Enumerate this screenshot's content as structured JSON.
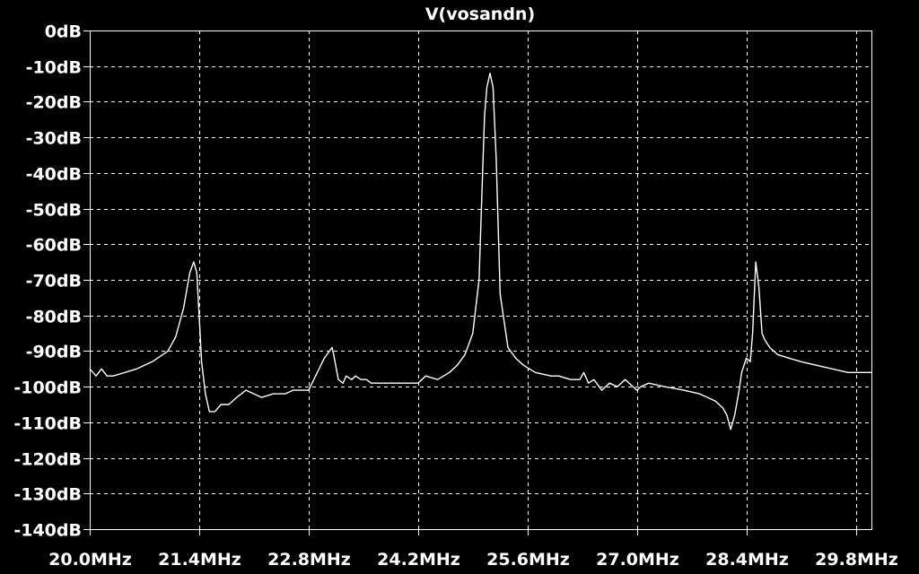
{
  "chart_data": {
    "type": "line",
    "title": "V(vosandn)",
    "xlabel": "",
    "ylabel": "",
    "x_unit": "MHz",
    "y_unit": "dB",
    "xlim": [
      20.0,
      30.0
    ],
    "ylim": [
      -140,
      0
    ],
    "x_ticks": [
      20.0,
      21.4,
      22.8,
      24.2,
      25.6,
      27.0,
      28.4,
      29.8
    ],
    "x_tick_labels": [
      "20.0MHz",
      "21.4MHz",
      "22.8MHz",
      "24.2MHz",
      "25.6MHz",
      "27.0MHz",
      "28.4MHz",
      "29.8MHz"
    ],
    "y_ticks": [
      0,
      -10,
      -20,
      -30,
      -40,
      -50,
      -60,
      -70,
      -80,
      -90,
      -100,
      -110,
      -120,
      -130,
      -140
    ],
    "y_tick_labels": [
      "0dB",
      "-10dB",
      "-20dB",
      "-30dB",
      "-40dB",
      "-50dB",
      "-60dB",
      "-70dB",
      "-80dB",
      "-90dB",
      "-100dB",
      "-110dB",
      "-120dB",
      "-130dB",
      "-140dB"
    ],
    "grid": true,
    "legend": "none",
    "colors": {
      "background": "#000000",
      "trace": "#ffffff",
      "grid": "#ffffff",
      "axis": "#ffffff",
      "text": "#ffffff"
    },
    "series": [
      {
        "x": [
          20.0,
          20.08,
          20.15,
          20.22,
          20.3,
          20.45,
          20.6,
          20.8,
          21.0,
          21.1,
          21.2,
          21.28,
          21.33,
          21.37,
          21.4,
          21.43,
          21.48,
          21.53,
          21.6,
          21.68,
          21.78,
          21.88,
          22.0,
          22.2,
          22.35,
          22.5,
          22.6,
          22.8,
          23.0,
          23.1,
          23.12,
          23.18,
          23.24,
          23.28,
          23.35,
          23.4,
          23.47,
          23.54,
          23.6,
          23.7,
          23.85,
          24.0,
          24.2,
          24.3,
          24.45,
          24.6,
          24.7,
          24.8,
          24.9,
          24.98,
          25.02,
          25.05,
          25.08,
          25.12,
          25.16,
          25.2,
          25.25,
          25.35,
          25.45,
          25.55,
          25.7,
          25.9,
          26.0,
          26.15,
          26.27,
          26.32,
          26.38,
          26.45,
          26.55,
          26.65,
          26.75,
          26.85,
          26.95,
          27.0,
          27.05,
          27.15,
          27.35,
          27.6,
          27.8,
          28.0,
          28.05,
          28.1,
          28.15,
          28.2,
          28.25,
          28.3,
          28.34,
          28.4,
          28.45,
          28.48,
          28.52,
          28.56,
          28.6,
          28.64,
          28.7,
          28.8,
          28.95,
          29.1,
          29.3,
          29.5,
          29.7,
          29.8,
          29.9,
          30.0
        ],
        "y": [
          -95,
          -97,
          -95,
          -97,
          -97,
          -96,
          -95,
          -93,
          -90,
          -86,
          -78,
          -68,
          -65,
          -68,
          -80,
          -93,
          -102,
          -107,
          -107,
          -105,
          -105,
          -103,
          -101,
          -103,
          -102,
          -102,
          -101,
          -101,
          -92,
          -89,
          -91,
          -98,
          -99,
          -97,
          -98,
          -97,
          -98,
          -98,
          -99,
          -99,
          -99,
          -99,
          -99,
          -97,
          -98,
          -96,
          -94,
          -91,
          -85,
          -70,
          -44,
          -24,
          -16,
          -12,
          -16,
          -36,
          -74,
          -89,
          -92,
          -94,
          -96,
          -97,
          -97,
          -98,
          -98,
          -96,
          -99,
          -98,
          -101,
          -99,
          -100,
          -98,
          -100,
          -101,
          -100,
          -99,
          -100,
          -101,
          -102,
          -104,
          -105,
          -106,
          -108,
          -112,
          -108,
          -102,
          -96,
          -92,
          -93,
          -85,
          -65,
          -72,
          -85,
          -87,
          -89,
          -91,
          -92,
          -93,
          -94,
          -95,
          -96,
          -96,
          -96,
          -96
        ]
      }
    ]
  }
}
